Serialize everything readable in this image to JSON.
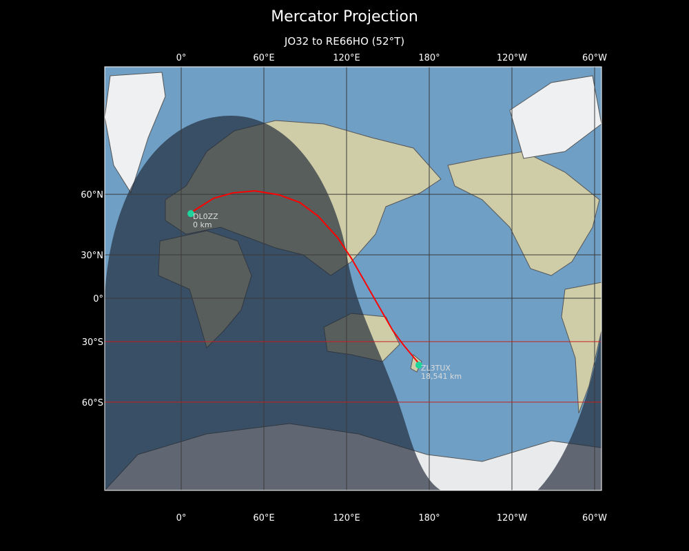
{
  "title": "Mercator Projection",
  "subtitle": "JO32 to RE66HO (52°T)",
  "map": {
    "projection": "mercator",
    "lon_range": [
      -55.5,
      305
    ],
    "lat_range": [
      -80,
      84
    ],
    "x_ticks": [
      {
        "lon": 0,
        "label": "0°"
      },
      {
        "lon": 60,
        "label": "60°E"
      },
      {
        "lon": 120,
        "label": "120°E"
      },
      {
        "lon": 180,
        "label": "180°"
      },
      {
        "lon": 240,
        "label": "120°W"
      },
      {
        "lon": 300,
        "label": "60°W"
      }
    ],
    "y_ticks": [
      {
        "lat": 60,
        "label": "60°N"
      },
      {
        "lat": 30,
        "label": "30°N"
      },
      {
        "lat": 0,
        "label": "0°"
      },
      {
        "lat": -30,
        "label": "30°S"
      },
      {
        "lat": -60,
        "label": "60°S"
      }
    ],
    "highlight_lats": [
      -30,
      -60
    ],
    "colors": {
      "ocean": "#6f9fc4",
      "land": "#d9d6b8",
      "path": "#ff0000",
      "marker": "#1ed49a",
      "grid": "#3a3a3a",
      "highlight": "#c81e1e"
    },
    "stations": [
      {
        "call": "DL0ZZ",
        "distance": "0 km",
        "lon": 7,
        "lat": 52.2
      },
      {
        "call": "ZL3TUX",
        "distance": "18,541 km",
        "lon": 172.5,
        "lat": -43.6
      }
    ],
    "path": [
      [
        7,
        52.2
      ],
      [
        10,
        53.8
      ],
      [
        23.5,
        58.5
      ],
      [
        37.5,
        60.5
      ],
      [
        53.5,
        61.2
      ],
      [
        71,
        59.8
      ],
      [
        86,
        56.9
      ],
      [
        99.5,
        51
      ],
      [
        113.5,
        40.2
      ],
      [
        123.5,
        27.8
      ],
      [
        133.5,
        11.4
      ],
      [
        143.5,
        -6
      ],
      [
        153.5,
        -22.8
      ],
      [
        161,
        -31.8
      ],
      [
        172.5,
        -42.8
      ]
    ]
  }
}
